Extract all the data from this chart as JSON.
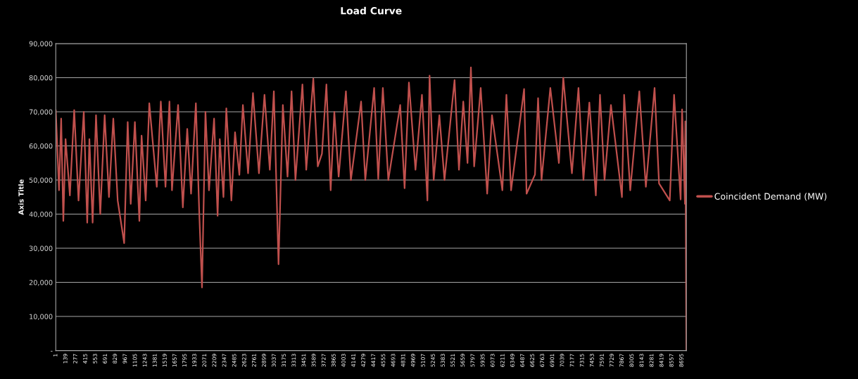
{
  "chart_data": {
    "type": "line",
    "title": "Load Curve",
    "ylabel": "Axis Title",
    "x": [
      1,
      46,
      76,
      106,
      137,
      197,
      257,
      317,
      390,
      438,
      468,
      513,
      560,
      619,
      680,
      740,
      800,
      861,
      951,
      1000,
      1042,
      1100,
      1162,
      1193,
      1250,
      1300,
      1404,
      1460,
      1525,
      1580,
      1615,
      1700,
      1766,
      1827,
      1880,
      1947,
      1993,
      2032,
      2080,
      2129,
      2200,
      2249,
      2279,
      2330,
      2370,
      2440,
      2491,
      2551,
      2600,
      2672,
      2740,
      2823,
      2900,
      2974,
      3030,
      3095,
      3155,
      3220,
      3276,
      3330,
      3427,
      3480,
      3578,
      3640,
      3698,
      3760,
      3819,
      3870,
      3930,
      4031,
      4100,
      4242,
      4300,
      4423,
      4480,
      4544,
      4620,
      4785,
      4846,
      4906,
      4997,
      5087,
      5163,
      5193,
      5250,
      5329,
      5400,
      5540,
      5601,
      5661,
      5720,
      5767,
      5812,
      5903,
      5993,
      6060,
      6204,
      6260,
      6325,
      6506,
      6540,
      6657,
      6700,
      6748,
      6870,
      6989,
      7050,
      7170,
      7261,
      7330,
      7412,
      7502,
      7560,
      7623,
      7712,
      7865,
      7895,
      7980,
      8106,
      8197,
      8318,
      8380,
      8529,
      8589,
      8680,
      8700,
      8740,
      8745,
      8760
    ],
    "series": [
      {
        "name": "Coincident Demand (MW)",
        "color": "#c0504d",
        "values": [
          70500,
          47000,
          68000,
          38000,
          62000,
          45500,
          70500,
          44000,
          70000,
          37500,
          62000,
          37500,
          69000,
          40000,
          69000,
          45000,
          68000,
          44000,
          31500,
          67000,
          43000,
          67000,
          38000,
          63000,
          44000,
          72500,
          48000,
          73000,
          48000,
          73000,
          47000,
          72000,
          42000,
          65000,
          46000,
          72500,
          41000,
          18500,
          70000,
          47000,
          68000,
          39500,
          62000,
          45000,
          71000,
          44000,
          64000,
          51500,
          72000,
          52000,
          75500,
          52000,
          75000,
          53000,
          76000,
          25300,
          72000,
          51000,
          76000,
          50000,
          78000,
          53000,
          79700,
          54000,
          57700,
          78000,
          47000,
          70000,
          51000,
          76000,
          50000,
          73000,
          50000,
          77000,
          50300,
          77000,
          50000,
          72000,
          47600,
          78600,
          53000,
          75000,
          44000,
          80600,
          50000,
          69000,
          50000,
          79300,
          53000,
          73000,
          55000,
          83000,
          54000,
          77000,
          46000,
          69000,
          47000,
          75000,
          47000,
          76700,
          46000,
          51600,
          74000,
          50000,
          77000,
          55000,
          80000,
          52000,
          77000,
          50000,
          72700,
          45500,
          75000,
          50000,
          72000,
          45000,
          75000,
          47000,
          76000,
          48000,
          77000,
          49000,
          44000,
          75000,
          44300,
          70700,
          43000,
          67200,
          0
        ]
      }
    ],
    "xlim": [
      1,
      8760
    ],
    "xticks": [
      1,
      139,
      277,
      415,
      553,
      691,
      829,
      967,
      1105,
      1243,
      1381,
      1519,
      1657,
      1795,
      1933,
      2071,
      2209,
      2347,
      2485,
      2623,
      2761,
      2899,
      3037,
      3175,
      3313,
      3451,
      3589,
      3727,
      3865,
      4003,
      4141,
      4279,
      4417,
      4555,
      4693,
      4831,
      4969,
      5107,
      5245,
      5383,
      5521,
      5659,
      5797,
      5935,
      6073,
      6211,
      6349,
      6487,
      6625,
      6763,
      6901,
      7039,
      7177,
      7315,
      7453,
      7591,
      7729,
      7867,
      8005,
      8143,
      8281,
      8419,
      8557,
      8695
    ],
    "ylim": [
      0,
      90000
    ],
    "yticks": [
      {
        "value": 0,
        "label": "-"
      },
      {
        "value": 10000,
        "label": "10,000"
      },
      {
        "value": 20000,
        "label": "20,000"
      },
      {
        "value": 30000,
        "label": "30,000"
      },
      {
        "value": 40000,
        "label": "40,000"
      },
      {
        "value": 50000,
        "label": "50,000"
      },
      {
        "value": 60000,
        "label": "60,000"
      },
      {
        "value": 70000,
        "label": "70,000"
      },
      {
        "value": 80000,
        "label": "80,000"
      },
      {
        "value": 90000,
        "label": "90,000"
      }
    ],
    "grid": "y",
    "legend": "right",
    "marker": "none",
    "line_style": "solid"
  }
}
